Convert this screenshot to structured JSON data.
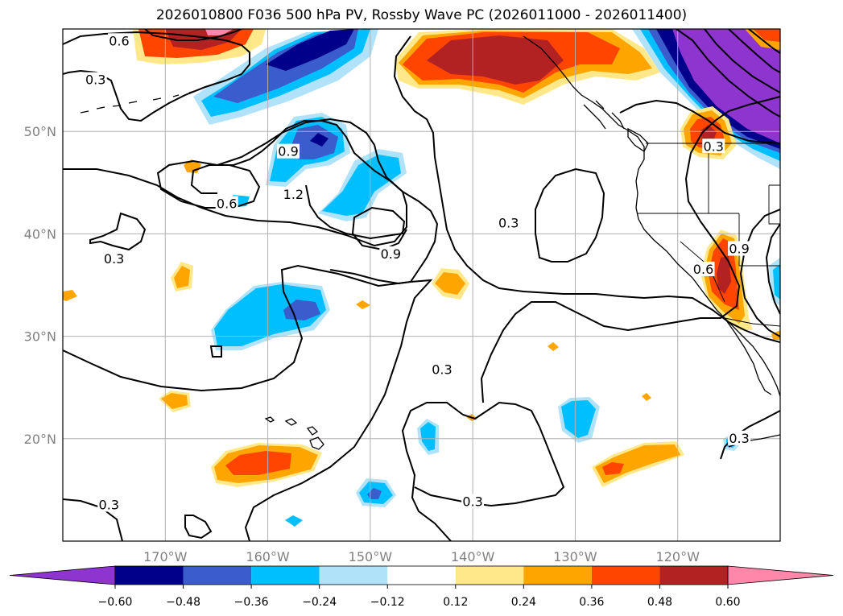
{
  "title": "2026010800 F036 500 hPa PV, Rossby Wave PC (2026011000 - 2026011400)",
  "map": {
    "lon_ticks": [
      {
        "value": -170,
        "label": "170°W"
      },
      {
        "value": -160,
        "label": "160°W"
      },
      {
        "value": -150,
        "label": "150°W"
      },
      {
        "value": -140,
        "label": "140°W"
      },
      {
        "value": -130,
        "label": "130°W"
      },
      {
        "value": -120,
        "label": "120°W"
      }
    ],
    "lat_ticks": [
      {
        "value": 20,
        "label": "20°N"
      },
      {
        "value": 30,
        "label": "30°N"
      },
      {
        "value": 40,
        "label": "40°N"
      },
      {
        "value": 50,
        "label": "50°N"
      }
    ],
    "extent": {
      "lon_min": -180,
      "lon_max": -110,
      "lat_min": 10,
      "lat_max": 60
    },
    "contour_labels": [
      {
        "text": "0.6",
        "lon": -174.5,
        "lat": 58.8
      },
      {
        "text": "0.3",
        "lon": -176.8,
        "lat": 55.0
      },
      {
        "text": "0.9",
        "lon": -158.0,
        "lat": 48.0
      },
      {
        "text": "0.6",
        "lon": -164.0,
        "lat": 42.9
      },
      {
        "text": "1.2",
        "lon": -157.5,
        "lat": 43.8
      },
      {
        "text": "0.3",
        "lon": -175.0,
        "lat": 37.5
      },
      {
        "text": "0.9",
        "lon": -148.0,
        "lat": 38.0
      },
      {
        "text": "0.3",
        "lon": -136.5,
        "lat": 41.0
      },
      {
        "text": "0.3",
        "lon": -143.0,
        "lat": 26.7
      },
      {
        "text": "0.3",
        "lon": -140.0,
        "lat": 13.8
      },
      {
        "text": "0.3",
        "lon": -175.5,
        "lat": 13.5
      },
      {
        "text": "0.9",
        "lon": -114.0,
        "lat": 38.5
      },
      {
        "text": "0.6",
        "lon": -117.5,
        "lat": 36.5
      },
      {
        "text": "0.3",
        "lon": -116.5,
        "lat": 48.5
      },
      {
        "text": "0.3",
        "lon": -114.0,
        "lat": 20.0
      }
    ]
  },
  "colorbar": {
    "ticks": [
      "−0.60",
      "−0.48",
      "−0.36",
      "−0.24",
      "−0.12",
      "0.12",
      "0.24",
      "0.36",
      "0.48",
      "0.60"
    ],
    "colors": [
      "#8e35cf",
      "#00008b",
      "#3a5ccc",
      "#00bfff",
      "#b0e2fa",
      "#ffffff",
      "#ffe88a",
      "#ffa500",
      "#ff4500",
      "#b22222",
      "#ff88aa",
      "#ff88aa"
    ]
  },
  "palette": {
    "light_yellow": "#ffe88a",
    "orange": "#ffa500",
    "orange_red": "#ff4500",
    "dark_red": "#b22222",
    "pink": "#ff88aa",
    "light_blue": "#b0e2fa",
    "sky_blue": "#00bfff",
    "royal_blue": "#3a5ccc",
    "navy": "#00008b",
    "purple": "#8e35cf"
  }
}
